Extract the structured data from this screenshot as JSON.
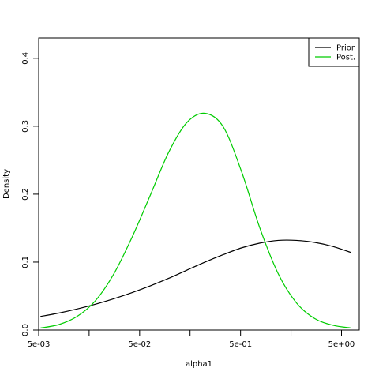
{
  "chart_data": {
    "type": "line",
    "title": "",
    "xlabel": "alpha1",
    "ylabel": "Density",
    "x_scale": "log",
    "xlim": [
      0.005,
      7.5
    ],
    "ylim": [
      0.0,
      0.43
    ],
    "x_ticks": [
      {
        "value": 0.005,
        "label": "5e-03"
      },
      {
        "value": 0.05,
        "label": "5e-02"
      },
      {
        "value": 0.5,
        "label": "5e-01"
      },
      {
        "value": 5,
        "label": "5e+00"
      }
    ],
    "x_minor_ticks": [
      0.0158,
      0.158,
      1.58
    ],
    "y_ticks": [
      {
        "value": 0.0,
        "label": "0.0"
      },
      {
        "value": 0.1,
        "label": "0.1"
      },
      {
        "value": 0.2,
        "label": "0.2"
      },
      {
        "value": 0.3,
        "label": "0.3"
      },
      {
        "value": 0.4,
        "label": "0.4"
      }
    ],
    "legend": "top-right",
    "grid": false,
    "series": [
      {
        "name": "Prior",
        "color": "#000000",
        "x": [
          0.0052,
          0.0079,
          0.012,
          0.0182,
          0.0276,
          0.0419,
          0.0636,
          0.0965,
          0.146,
          0.222,
          0.337,
          0.512,
          0.777,
          1.18,
          1.79,
          2.71,
          4.12,
          6.25
        ],
        "y": [
          0.02,
          0.025,
          0.031,
          0.038,
          0.046,
          0.055,
          0.065,
          0.076,
          0.088,
          0.1,
          0.111,
          0.121,
          0.128,
          0.132,
          0.132,
          0.129,
          0.123,
          0.114
        ]
      },
      {
        "name": "Post.",
        "color": "#00cc00",
        "x": [
          0.0052,
          0.0079,
          0.012,
          0.0182,
          0.0276,
          0.0419,
          0.0636,
          0.0965,
          0.146,
          0.222,
          0.337,
          0.512,
          0.777,
          1.18,
          1.79,
          2.71,
          4.12,
          6.25
        ],
        "y": [
          0.003,
          0.008,
          0.02,
          0.043,
          0.082,
          0.136,
          0.198,
          0.261,
          0.305,
          0.319,
          0.299,
          0.233,
          0.15,
          0.083,
          0.04,
          0.017,
          0.007,
          0.003
        ]
      }
    ]
  }
}
